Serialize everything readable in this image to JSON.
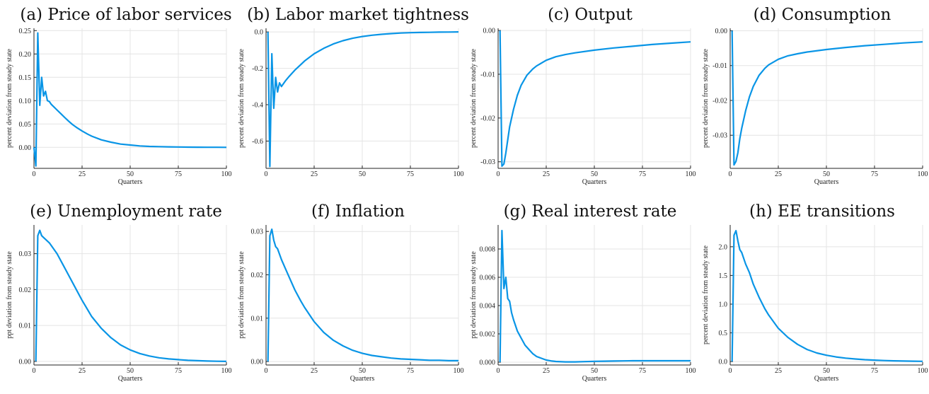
{
  "series_color": "#0995e6",
  "chart_data": [
    {
      "type": "line",
      "panel": "a",
      "title": "(a) Price of labor services",
      "xlabel": "Quarters",
      "ylabel": "percent deviation from steady state",
      "xlim": [
        0,
        100
      ],
      "ylim": [
        -0.045,
        0.255
      ],
      "xticks": [
        0,
        25,
        50,
        75,
        100
      ],
      "yticks": [
        0.0,
        0.05,
        0.1,
        0.15,
        0.2,
        0.25
      ],
      "ytick_labels": [
        "0.00",
        "0.05",
        "0.10",
        "0.15",
        "0.20",
        "0.25"
      ],
      "grid": true,
      "x": [
        0,
        1,
        2,
        3,
        4,
        5,
        6,
        7,
        8,
        9,
        10,
        12,
        14,
        16,
        18,
        20,
        22,
        25,
        28,
        30,
        35,
        40,
        45,
        50,
        55,
        60,
        65,
        70,
        75,
        80,
        85,
        90,
        95,
        100
      ],
      "y": [
        0.0,
        -0.04,
        0.245,
        0.09,
        0.15,
        0.11,
        0.12,
        0.1,
        0.098,
        0.092,
        0.088,
        0.08,
        0.072,
        0.064,
        0.056,
        0.049,
        0.043,
        0.035,
        0.028,
        0.024,
        0.016,
        0.011,
        0.007,
        0.005,
        0.003,
        0.002,
        0.0015,
        0.001,
        0.0007,
        0.0005,
        0.0003,
        0.0002,
        0.0001,
        0.0
      ]
    },
    {
      "type": "line",
      "panel": "b",
      "title": "(b) Labor market tightness",
      "xlabel": "",
      "ylabel": "percent deviation from steady state",
      "xlim": [
        0,
        100
      ],
      "ylim": [
        -0.75,
        0.02
      ],
      "xticks": [
        0,
        25,
        50,
        75,
        100
      ],
      "yticks": [
        0.0,
        -0.2,
        -0.4,
        -0.6
      ],
      "ytick_labels": [
        "0.0",
        "-0.2",
        "-0.4",
        "-0.6"
      ],
      "grid": true,
      "x": [
        1,
        2,
        3,
        4,
        5,
        6,
        7,
        8,
        10,
        12,
        15,
        18,
        20,
        25,
        30,
        35,
        40,
        45,
        50,
        55,
        60,
        65,
        70,
        75,
        80,
        85,
        90,
        95,
        100
      ],
      "y": [
        0.0,
        -0.74,
        -0.12,
        -0.42,
        -0.25,
        -0.33,
        -0.28,
        -0.3,
        -0.27,
        -0.245,
        -0.21,
        -0.18,
        -0.16,
        -0.12,
        -0.09,
        -0.066,
        -0.048,
        -0.035,
        -0.025,
        -0.018,
        -0.013,
        -0.009,
        -0.006,
        -0.004,
        -0.003,
        -0.002,
        -0.001,
        -0.0005,
        0.0
      ]
    },
    {
      "type": "line",
      "panel": "c",
      "title": "(c) Output",
      "xlabel": "Quarters",
      "ylabel": "percent deviation from steady state",
      "xlim": [
        0,
        100
      ],
      "ylim": [
        -0.0315,
        0.0005
      ],
      "xticks": [
        0,
        25,
        50,
        75,
        100
      ],
      "yticks": [
        0.0,
        -0.01,
        -0.02,
        -0.03
      ],
      "ytick_labels": [
        "0.00",
        "-0.01",
        "-0.02",
        "-0.03"
      ],
      "grid": true,
      "x": [
        1,
        2,
        3,
        4,
        5,
        6,
        8,
        10,
        12,
        15,
        18,
        20,
        25,
        30,
        35,
        40,
        50,
        60,
        70,
        80,
        90,
        100
      ],
      "y": [
        0.0,
        -0.031,
        -0.0305,
        -0.028,
        -0.025,
        -0.022,
        -0.018,
        -0.0148,
        -0.0125,
        -0.0102,
        -0.0088,
        -0.0081,
        -0.0068,
        -0.006,
        -0.0055,
        -0.0051,
        -0.0045,
        -0.004,
        -0.0036,
        -0.0032,
        -0.0029,
        -0.0026
      ]
    },
    {
      "type": "line",
      "panel": "d",
      "title": "(d) Consumption",
      "xlabel": "Quarters",
      "ylabel": "percent deviation from steady state",
      "xlim": [
        0,
        100
      ],
      "ylim": [
        -0.0395,
        0.0007
      ],
      "xticks": [
        0,
        25,
        50,
        75,
        100
      ],
      "yticks": [
        0.0,
        -0.01,
        -0.02,
        -0.03
      ],
      "ytick_labels": [
        "0.00",
        "-0.01",
        "-0.02",
        "-0.03"
      ],
      "grid": true,
      "x": [
        1,
        2,
        3,
        4,
        5,
        6,
        8,
        10,
        12,
        15,
        18,
        20,
        25,
        30,
        35,
        40,
        50,
        60,
        70,
        80,
        90,
        100
      ],
      "y": [
        0.0,
        -0.0385,
        -0.0375,
        -0.035,
        -0.031,
        -0.028,
        -0.023,
        -0.019,
        -0.016,
        -0.0128,
        -0.0108,
        -0.0098,
        -0.0082,
        -0.0072,
        -0.0066,
        -0.0061,
        -0.0054,
        -0.0048,
        -0.0043,
        -0.0039,
        -0.0035,
        -0.0032
      ]
    },
    {
      "type": "line",
      "panel": "e",
      "title": "(e) Unemployment rate",
      "xlabel": "Quarters",
      "ylabel": "ppt deviation from steady state",
      "xlim": [
        0,
        100
      ],
      "ylim": [
        -0.001,
        0.038
      ],
      "xticks": [
        0,
        25,
        50,
        75,
        100
      ],
      "yticks": [
        0.0,
        0.01,
        0.02,
        0.03
      ],
      "ytick_labels": [
        "0.00",
        "0.01",
        "0.02",
        "0.03"
      ],
      "grid": true,
      "x": [
        1,
        2,
        3,
        4,
        5,
        6,
        8,
        10,
        12,
        15,
        18,
        20,
        25,
        30,
        35,
        40,
        45,
        50,
        55,
        60,
        65,
        70,
        75,
        80,
        85,
        90,
        95,
        100
      ],
      "y": [
        0.0,
        0.035,
        0.0365,
        0.035,
        0.0345,
        0.034,
        0.033,
        0.0315,
        0.03,
        0.027,
        0.024,
        0.022,
        0.017,
        0.0125,
        0.0092,
        0.0066,
        0.0046,
        0.0032,
        0.0022,
        0.0015,
        0.001,
        0.0007,
        0.0005,
        0.0003,
        0.0002,
        0.0001,
        5e-05,
        0.0
      ]
    },
    {
      "type": "line",
      "panel": "f",
      "title": "(f) Inflation",
      "xlabel": "Quarters",
      "ylabel": "ppt deviation from steady state",
      "xlim": [
        0,
        100
      ],
      "ylim": [
        -0.0008,
        0.0315
      ],
      "xticks": [
        0,
        25,
        50,
        75,
        100
      ],
      "yticks": [
        0.0,
        0.01,
        0.02,
        0.03
      ],
      "ytick_labels": [
        "0.00",
        "0.01",
        "0.02",
        "0.03"
      ],
      "grid": true,
      "x": [
        1,
        2,
        3,
        4,
        5,
        6,
        8,
        10,
        12,
        15,
        18,
        20,
        25,
        30,
        35,
        40,
        45,
        50,
        55,
        60,
        65,
        70,
        75,
        80,
        85,
        90,
        95,
        100
      ],
      "y": [
        0.0,
        0.029,
        0.0305,
        0.028,
        0.0265,
        0.026,
        0.0235,
        0.0215,
        0.0195,
        0.0165,
        0.014,
        0.0125,
        0.0092,
        0.0067,
        0.0049,
        0.0036,
        0.0026,
        0.0019,
        0.0014,
        0.0011,
        0.0008,
        0.0006,
        0.0005,
        0.0004,
        0.0003,
        0.0003,
        0.0002,
        0.0002
      ]
    },
    {
      "type": "line",
      "panel": "g",
      "title": "(g) Real interest rate",
      "xlabel": "Quarters",
      "ylabel": "ppt deviation from steady state",
      "xlim": [
        0,
        100
      ],
      "ylim": [
        -0.0002,
        0.0097
      ],
      "xticks": [
        0,
        25,
        50,
        75,
        100
      ],
      "yticks": [
        0.0,
        0.002,
        0.004,
        0.006,
        0.008
      ],
      "ytick_labels": [
        "0.000",
        "0.002",
        "0.004",
        "0.006",
        "0.008"
      ],
      "grid": true,
      "x": [
        1,
        2,
        3,
        4,
        5,
        6,
        7,
        8,
        9,
        10,
        12,
        14,
        16,
        18,
        20,
        22,
        25,
        28,
        30,
        35,
        40,
        45,
        50,
        55,
        60,
        65,
        70,
        75,
        80,
        85,
        90,
        95,
        100
      ],
      "y": [
        0.0,
        0.0093,
        0.0052,
        0.006,
        0.0045,
        0.0043,
        0.0035,
        0.003,
        0.0026,
        0.0022,
        0.0017,
        0.0012,
        0.0009,
        0.0006,
        0.0004,
        0.0003,
        0.00015,
        8e-05,
        5e-05,
        2e-05,
        2e-05,
        4e-05,
        6e-05,
        7e-05,
        8e-05,
        9e-05,
        0.0001,
        0.0001,
        0.0001,
        0.0001,
        0.0001,
        0.0001,
        0.0001
      ]
    },
    {
      "type": "line",
      "panel": "h",
      "title": "(h) EE transitions",
      "xlabel": "Quarters",
      "ylabel": "percent deviation from steady state",
      "xlim": [
        0,
        100
      ],
      "ylim": [
        -0.06,
        2.38
      ],
      "xticks": [
        0,
        25,
        50,
        75,
        100
      ],
      "yticks": [
        0.0,
        0.5,
        1.0,
        1.5,
        2.0
      ],
      "ytick_labels": [
        "0.0",
        "0.5",
        "1.0",
        "1.5",
        "2.0"
      ],
      "grid": true,
      "x": [
        1,
        2,
        3,
        4,
        5,
        6,
        8,
        10,
        12,
        15,
        18,
        20,
        25,
        30,
        35,
        40,
        45,
        50,
        55,
        60,
        65,
        70,
        75,
        80,
        85,
        90,
        95,
        100
      ],
      "y": [
        0.0,
        2.2,
        2.28,
        2.1,
        1.95,
        1.9,
        1.7,
        1.55,
        1.35,
        1.12,
        0.92,
        0.81,
        0.58,
        0.42,
        0.3,
        0.21,
        0.15,
        0.11,
        0.08,
        0.06,
        0.045,
        0.033,
        0.025,
        0.018,
        0.013,
        0.009,
        0.006,
        0.004
      ]
    }
  ]
}
